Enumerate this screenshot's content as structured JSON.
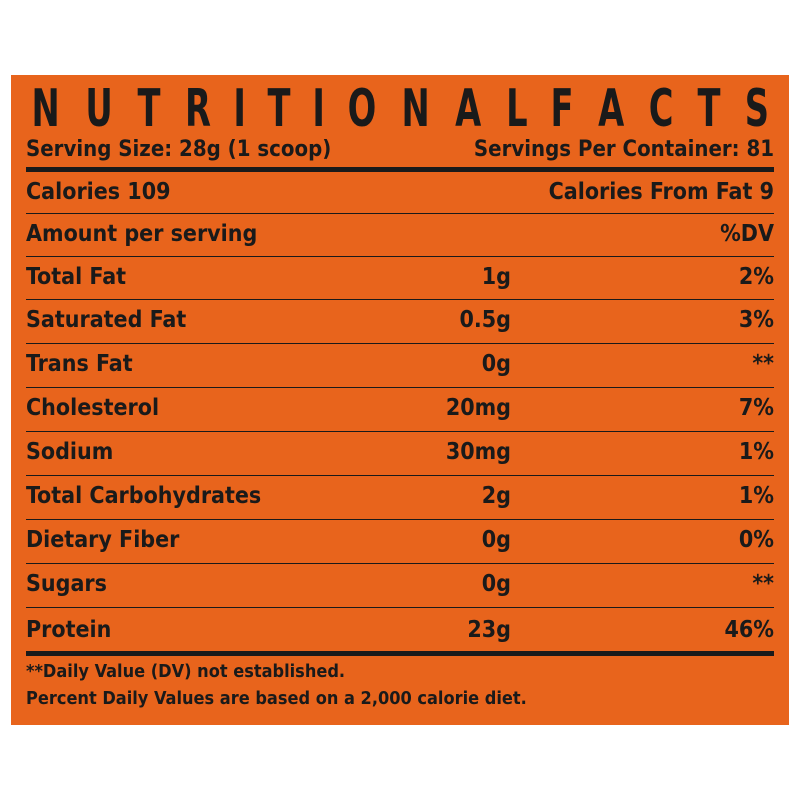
{
  "title": {
    "letters": [
      "N",
      "U",
      "T",
      "R",
      "I",
      "T",
      "I",
      "O",
      "N",
      "A",
      "L",
      "F",
      "A",
      "C",
      "T",
      "S"
    ]
  },
  "serving": {
    "size": "Serving Size: 28g (1 scoop)",
    "per_container": "Servings Per Container: 81"
  },
  "calories": {
    "left": "Calories 109",
    "right": "Calories From Fat 9"
  },
  "amount_header": {
    "left": "Amount per serving",
    "right": "%DV"
  },
  "nutrients": [
    {
      "name": "Total Fat",
      "amount": "1g",
      "dv": "2%"
    },
    {
      "name": "Saturated Fat",
      "amount": "0.5g",
      "dv": "3%"
    },
    {
      "name": "Trans Fat",
      "amount": "0g",
      "dv": "**"
    },
    {
      "name": "Cholesterol",
      "amount": "20mg",
      "dv": "7%"
    },
    {
      "name": "Sodium",
      "amount": "30mg",
      "dv": "1%"
    },
    {
      "name": "Total Carbohydrates",
      "amount": "2g",
      "dv": "1%"
    },
    {
      "name": "Dietary Fiber",
      "amount": "0g",
      "dv": "0%"
    },
    {
      "name": "Sugars",
      "amount": "0g",
      "dv": "**"
    },
    {
      "name": "Protein",
      "amount": "23g",
      "dv": "46%"
    }
  ],
  "footer": {
    "line1": "**Daily Value (DV) not established.",
    "line2": "Percent Daily Values are based on a 2,000 calorie diet."
  },
  "colors": {
    "panel": "#e8641c",
    "text": "#1a1a1a"
  }
}
